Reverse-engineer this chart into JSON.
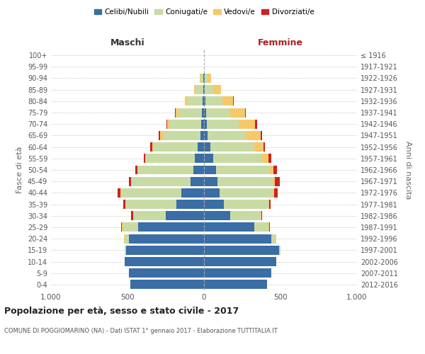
{
  "age_groups": [
    "0-4",
    "5-9",
    "10-14",
    "15-19",
    "20-24",
    "25-29",
    "30-34",
    "35-39",
    "40-44",
    "45-49",
    "50-54",
    "55-59",
    "60-64",
    "65-69",
    "70-74",
    "75-79",
    "80-84",
    "85-89",
    "90-94",
    "95-99",
    "100+"
  ],
  "birth_years": [
    "2012-2016",
    "2007-2011",
    "2002-2006",
    "1997-2001",
    "1992-1996",
    "1987-1991",
    "1982-1986",
    "1977-1981",
    "1972-1976",
    "1967-1971",
    "1962-1966",
    "1957-1961",
    "1952-1956",
    "1947-1951",
    "1942-1946",
    "1937-1941",
    "1932-1936",
    "1927-1931",
    "1922-1926",
    "1917-1921",
    "≤ 1916"
  ],
  "males": {
    "celibi": [
      480,
      490,
      520,
      510,
      490,
      430,
      250,
      180,
      150,
      90,
      70,
      60,
      40,
      25,
      20,
      15,
      10,
      5,
      5,
      0,
      0
    ],
    "coniugati": [
      0,
      0,
      0,
      10,
      30,
      100,
      210,
      330,
      390,
      380,
      360,
      320,
      290,
      240,
      200,
      150,
      100,
      50,
      20,
      0,
      0
    ],
    "vedovi": [
      0,
      0,
      0,
      0,
      5,
      5,
      5,
      5,
      5,
      5,
      5,
      5,
      10,
      20,
      20,
      20,
      15,
      10,
      5,
      0,
      0
    ],
    "divorziati": [
      0,
      0,
      0,
      0,
      0,
      5,
      10,
      15,
      20,
      15,
      15,
      10,
      10,
      10,
      5,
      5,
      0,
      0,
      0,
      0,
      0
    ]
  },
  "females": {
    "nubili": [
      410,
      440,
      470,
      490,
      440,
      330,
      170,
      130,
      100,
      90,
      80,
      60,
      40,
      25,
      20,
      15,
      10,
      5,
      5,
      0,
      0
    ],
    "coniugate": [
      0,
      0,
      0,
      10,
      30,
      90,
      200,
      290,
      350,
      360,
      350,
      320,
      290,
      245,
      205,
      155,
      110,
      55,
      20,
      0,
      0
    ],
    "vedove": [
      0,
      0,
      0,
      0,
      0,
      5,
      5,
      5,
      10,
      15,
      25,
      40,
      60,
      100,
      110,
      100,
      70,
      50,
      20,
      0,
      0
    ],
    "divorziate": [
      0,
      0,
      0,
      0,
      0,
      5,
      5,
      10,
      20,
      30,
      20,
      20,
      10,
      10,
      10,
      5,
      5,
      0,
      0,
      0,
      0
    ]
  },
  "colors": {
    "celibi": "#3a6ea5",
    "coniugati": "#c8dba5",
    "vedovi": "#f5c96a",
    "divorziati": "#cc2222"
  },
  "legend_labels": [
    "Celibi/Nubili",
    "Coniugati/e",
    "Vedovi/e",
    "Divorziati/e"
  ],
  "title": "Popolazione per età, sesso e stato civile - 2017",
  "subtitle": "COMUNE DI POGGIOMARINO (NA) - Dati ISTAT 1° gennaio 2017 - Elaborazione TUTTITALIA.IT",
  "xlabel_left": "Maschi",
  "xlabel_right": "Femmine",
  "ylabel_left": "Fasce di età",
  "ylabel_right": "Anni di nascita",
  "xlim": 1000,
  "bg_color": "#ffffff",
  "grid_color": "#cccccc"
}
